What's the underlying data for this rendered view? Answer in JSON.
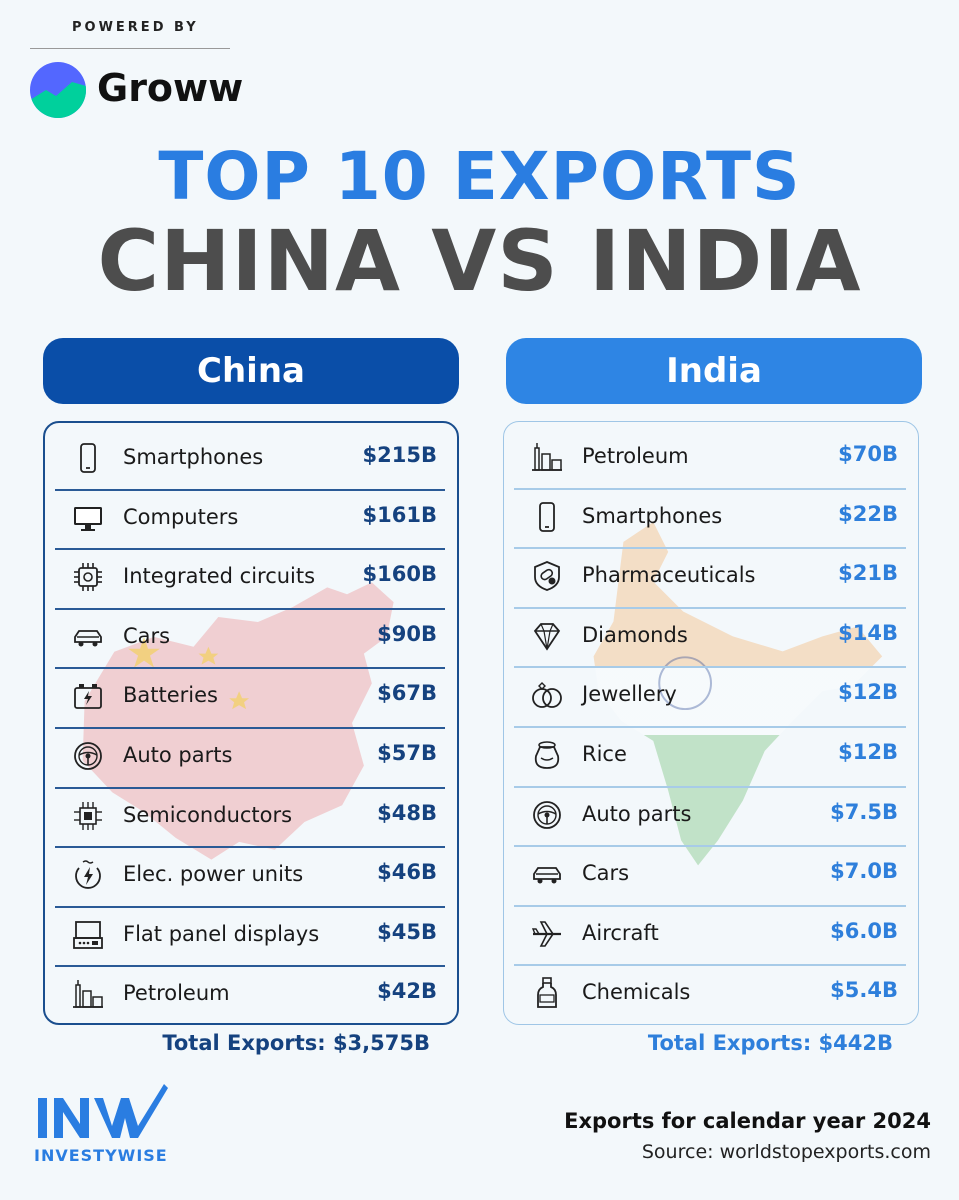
{
  "header": {
    "powered_by": "POWERED BY",
    "brand": "Groww",
    "title_line1": "TOP 10 EXPORTS",
    "title_line2": "CHINA VS INDIA"
  },
  "colors": {
    "china_header": "#0a4ea8",
    "india_header": "#2e85e4",
    "title_blue": "#2a7de1",
    "title_gray": "#4d4d4d",
    "china_value": "#15427f",
    "india_value": "#2e7fdb"
  },
  "chart_data": [
    {
      "type": "table",
      "title": "China",
      "unit": "$B",
      "rows": [
        {
          "icon": "smartphone-icon",
          "label": "Smartphones",
          "value": 215,
          "display": "$215B"
        },
        {
          "icon": "computer-icon",
          "label": "Computers",
          "value": 161,
          "display": "$161B"
        },
        {
          "icon": "chip-icon",
          "label": "Integrated circuits",
          "value": 160,
          "display": "$160B"
        },
        {
          "icon": "car-icon",
          "label": "Cars",
          "value": 90,
          "display": "$90B"
        },
        {
          "icon": "battery-icon",
          "label": "Batteries",
          "value": 67,
          "display": "$67B"
        },
        {
          "icon": "steering-wheel-icon",
          "label": "Auto parts",
          "value": 57,
          "display": "$57B"
        },
        {
          "icon": "semiconductor-icon",
          "label": "Semiconductors",
          "value": 48,
          "display": "$48B"
        },
        {
          "icon": "power-unit-icon",
          "label": "Elec. power units",
          "value": 46,
          "display": "$46B"
        },
        {
          "icon": "display-panel-icon",
          "label": "Flat panel displays",
          "value": 45,
          "display": "$45B"
        },
        {
          "icon": "refinery-icon",
          "label": "Petroleum",
          "value": 42,
          "display": "$42B"
        }
      ],
      "total": "Total Exports: $3,575B"
    },
    {
      "type": "table",
      "title": "India",
      "unit": "$B",
      "rows": [
        {
          "icon": "refinery-icon",
          "label": "Petroleum",
          "value": 70,
          "display": "$70B"
        },
        {
          "icon": "smartphone-icon",
          "label": "Smartphones",
          "value": 22,
          "display": "$22B"
        },
        {
          "icon": "pharma-icon",
          "label": "Pharmaceuticals",
          "value": 21,
          "display": "$21B"
        },
        {
          "icon": "diamond-icon",
          "label": "Diamonds",
          "value": 14,
          "display": "$14B"
        },
        {
          "icon": "rings-icon",
          "label": "Jewellery",
          "value": 12,
          "display": "$12B"
        },
        {
          "icon": "rice-sack-icon",
          "label": "Rice",
          "value": 12,
          "display": "$12B"
        },
        {
          "icon": "steering-wheel-icon",
          "label": "Auto parts",
          "value": 7.5,
          "display": "$7.5B"
        },
        {
          "icon": "car-icon",
          "label": "Cars",
          "value": 7.0,
          "display": "$7.0B"
        },
        {
          "icon": "airplane-icon",
          "label": "Aircraft",
          "value": 6.0,
          "display": "$6.0B"
        },
        {
          "icon": "bottle-icon",
          "label": "Chemicals",
          "value": 5.4,
          "display": "$5.4B"
        }
      ],
      "total": "Total Exports: $442B"
    }
  ],
  "footer": {
    "logo_text": "INVESTYWISE",
    "note": "Exports for calendar year 2024",
    "source": "Source: worldstopexports.com"
  }
}
